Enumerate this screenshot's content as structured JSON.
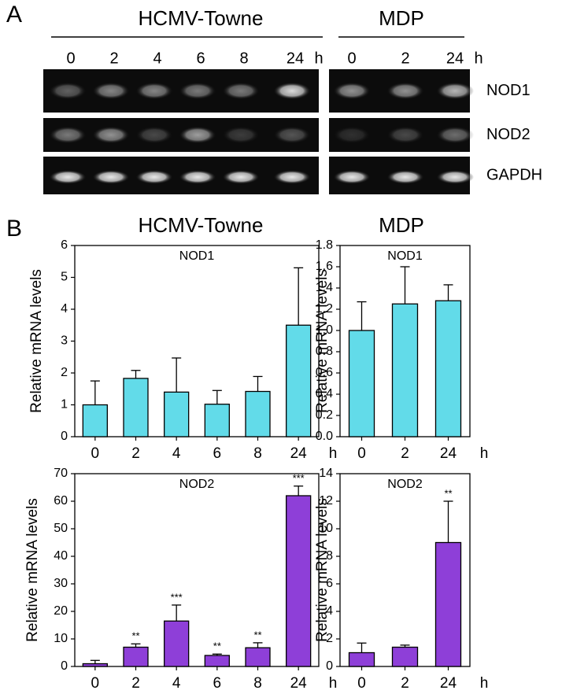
{
  "panel_a": {
    "label": "A",
    "groups": [
      {
        "name": "HCMV-Towne",
        "lanes": [
          "0",
          "2",
          "4",
          "6",
          "8",
          "24"
        ],
        "unit": "h"
      },
      {
        "name": "MDP",
        "lanes": [
          "0",
          "2",
          "24"
        ],
        "unit": "h"
      }
    ],
    "genes": [
      "NOD1",
      "NOD2",
      "GAPDH"
    ]
  },
  "panel_b": {
    "label": "B",
    "headers": [
      "HCMV-Towne",
      "MDP"
    ]
  },
  "chart_data": [
    {
      "type": "bar",
      "title": "NOD1",
      "ylabel": "Relative mRNA levels",
      "xlabel": "h",
      "categories": [
        "0",
        "2",
        "4",
        "6",
        "8",
        "24"
      ],
      "values": [
        1.0,
        1.83,
        1.4,
        1.02,
        1.42,
        3.5
      ],
      "errors": [
        0.75,
        0.25,
        1.07,
        0.43,
        0.47,
        1.8
      ],
      "color": "#62dbe9",
      "ylim": [
        0,
        6
      ],
      "yticks": [
        0,
        1,
        2,
        3,
        4,
        5,
        6
      ]
    },
    {
      "type": "bar",
      "title": "NOD1",
      "ylabel": "Relative mRNA levels",
      "xlabel": "h",
      "categories": [
        "0",
        "2",
        "24"
      ],
      "values": [
        1.0,
        1.25,
        1.28
      ],
      "errors": [
        0.27,
        0.35,
        0.15
      ],
      "color": "#62dbe9",
      "ylim": [
        0,
        1.8
      ],
      "yticks": [
        {
          "value": 0,
          "label": "0.0"
        },
        0.2,
        0.4,
        0.6,
        0.8,
        {
          "value": 1,
          "label": "1.0"
        },
        1.2,
        1.4,
        1.6,
        1.8
      ]
    },
    {
      "type": "bar",
      "title": "NOD2",
      "ylabel": "Relative mRNA levels",
      "xlabel": "h",
      "categories": [
        "0",
        "2",
        "4",
        "6",
        "8",
        "24"
      ],
      "values": [
        1.0,
        7.0,
        16.5,
        4.0,
        6.8,
        62
      ],
      "errors": [
        1.2,
        1.2,
        5.8,
        0.5,
        1.8,
        3.5
      ],
      "annotations": [
        null,
        "**",
        "***",
        "**",
        "**",
        "***"
      ],
      "color": "#8e3fd8",
      "ylim": [
        0,
        70
      ],
      "yticks": [
        0,
        10,
        20,
        30,
        40,
        50,
        60,
        70
      ]
    },
    {
      "type": "bar",
      "title": "NOD2",
      "ylabel": "Relative mRNA levels",
      "xlabel": "h",
      "categories": [
        "0",
        "2",
        "24"
      ],
      "values": [
        1.0,
        1.4,
        9.0
      ],
      "errors": [
        0.7,
        0.15,
        3.0
      ],
      "annotations": [
        null,
        null,
        "**"
      ],
      "color": "#8e3fd8",
      "ylim": [
        0,
        14
      ],
      "yticks": [
        0,
        2,
        4,
        6,
        8,
        10,
        12,
        14
      ]
    }
  ]
}
